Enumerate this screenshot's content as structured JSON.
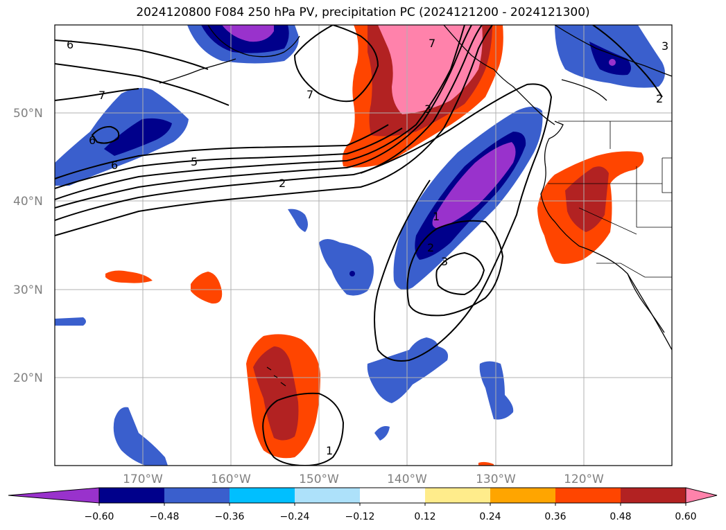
{
  "title": "2024120800 F084 250 hPa PV, precipitation PC (2024121200 - 2024121300)",
  "lat_labels": [
    "50°N",
    "40°N",
    "30°N",
    "20°N"
  ],
  "lon_labels": [
    "170°W",
    "160°W",
    "150°W",
    "140°W",
    "130°W",
    "120°W"
  ],
  "colorbar": {
    "ticks": [
      "−0.60",
      "−0.48",
      "−0.36",
      "−0.24",
      "−0.12",
      "0.12",
      "0.24",
      "0.36",
      "0.48",
      "0.60"
    ],
    "colors": [
      "#9932CC",
      "#00008B",
      "#3A5FCD",
      "#00BFFF",
      "#ADE1FA",
      "#FFFFFF",
      "#FFEC8B",
      "#FFA500",
      "#FF4500",
      "#B22222",
      "#FF82AB"
    ]
  },
  "contour_labels": {
    "c6a": "6",
    "c7a": "7",
    "c6b": "6",
    "c6c": "6",
    "c5": "5",
    "c2a": "2",
    "c7b": "7",
    "c3a": "3",
    "c7c": "7",
    "c1a": "1",
    "c2b": "2",
    "c3b": "3",
    "c1b": "1",
    "c2c": "2",
    "c3c": "3"
  }
}
